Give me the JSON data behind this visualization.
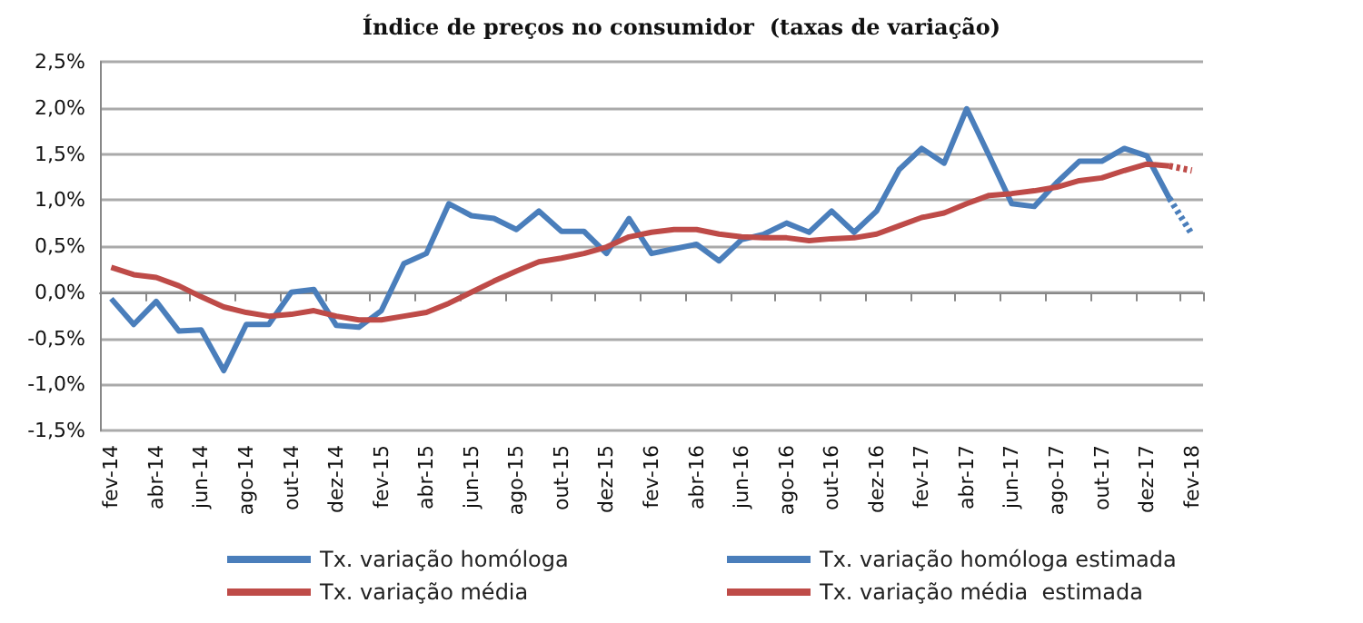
{
  "chart_data": {
    "type": "line",
    "title": "Índice de preços no consumidor  (taxas de variação)",
    "categories": [
      "fev-14",
      null,
      "abr-14",
      null,
      "jun-14",
      null,
      "ago-14",
      null,
      "out-14",
      null,
      "dez-14",
      null,
      "fev-15",
      null,
      "abr-15",
      null,
      "jun-15",
      null,
      "ago-15",
      null,
      "out-15",
      null,
      "dez-15",
      null,
      "fev-16",
      null,
      "abr-16",
      null,
      "jun-16",
      null,
      "ago-16",
      null,
      "out-16",
      null,
      "dez-16",
      null,
      "fev-17",
      null,
      "abr-17",
      null,
      "jun-17",
      null,
      "ago-17",
      null,
      "out-17",
      null,
      "dez-17",
      null,
      "fev-18"
    ],
    "series": [
      {
        "name": "Tx. variação homóloga",
        "color": "#4a7ebb",
        "line_style": "solid",
        "values": [
          -0.07,
          -0.35,
          -0.1,
          -0.42,
          -0.41,
          -0.85,
          -0.35,
          -0.35,
          0.0,
          0.03,
          -0.36,
          -0.38,
          -0.2,
          0.31,
          0.42,
          0.96,
          0.83,
          0.8,
          0.68,
          0.88,
          0.66,
          0.66,
          0.42,
          0.8,
          0.42,
          0.47,
          0.52,
          0.34,
          0.57,
          0.63,
          0.75,
          0.65,
          0.88,
          0.65,
          0.88,
          1.33,
          1.56,
          1.4,
          1.99,
          1.48,
          0.96,
          0.93,
          1.19,
          1.42,
          1.42,
          1.56,
          1.48,
          1.02,
          null
        ]
      },
      {
        "name": "Tx. variação homóloga estimada",
        "color": "#4a7ebb",
        "line_style": "dotted",
        "values": [
          null,
          null,
          null,
          null,
          null,
          null,
          null,
          null,
          null,
          null,
          null,
          null,
          null,
          null,
          null,
          null,
          null,
          null,
          null,
          null,
          null,
          null,
          null,
          null,
          null,
          null,
          null,
          null,
          null,
          null,
          null,
          null,
          null,
          null,
          null,
          null,
          null,
          null,
          null,
          null,
          null,
          null,
          null,
          null,
          null,
          null,
          null,
          1.02,
          0.63
        ]
      },
      {
        "name": "Tx. variação média",
        "color": "#be4b48",
        "line_style": "solid",
        "values": [
          0.27,
          0.19,
          0.16,
          0.07,
          -0.05,
          -0.16,
          -0.22,
          -0.26,
          -0.24,
          -0.2,
          -0.26,
          -0.3,
          -0.3,
          -0.26,
          -0.22,
          -0.12,
          0.0,
          0.12,
          0.23,
          0.33,
          0.37,
          0.42,
          0.49,
          0.6,
          0.65,
          0.68,
          0.68,
          0.63,
          0.6,
          0.59,
          0.59,
          0.56,
          0.58,
          0.59,
          0.63,
          0.72,
          0.81,
          0.86,
          0.96,
          1.05,
          1.07,
          1.1,
          1.14,
          1.21,
          1.24,
          1.32,
          1.39,
          1.37,
          null
        ]
      },
      {
        "name": "Tx. variação média  estimada",
        "color": "#be4b48",
        "line_style": "dotted",
        "values": [
          null,
          null,
          null,
          null,
          null,
          null,
          null,
          null,
          null,
          null,
          null,
          null,
          null,
          null,
          null,
          null,
          null,
          null,
          null,
          null,
          null,
          null,
          null,
          null,
          null,
          null,
          null,
          null,
          null,
          null,
          null,
          null,
          null,
          null,
          null,
          null,
          null,
          null,
          null,
          null,
          null,
          null,
          null,
          null,
          null,
          null,
          null,
          1.37,
          1.32
        ]
      }
    ],
    "ylim": [
      -1.5,
      2.5
    ],
    "yticks": [
      {
        "value": -1.5,
        "label": "-1,5%"
      },
      {
        "value": -1.0,
        "label": "-1,0%"
      },
      {
        "value": -0.5,
        "label": "-0,5%"
      },
      {
        "value": 0,
        "label": "0,0%"
      },
      {
        "value": 0.5,
        "label": "0,5%"
      },
      {
        "value": 1.0,
        "label": "1,0%"
      },
      {
        "value": 1.5,
        "label": "1,5%"
      },
      {
        "value": 2.0,
        "label": "2,0%"
      },
      {
        "value": 2.5,
        "label": "2,5%"
      }
    ],
    "grid": "y",
    "legend": "bottom",
    "marker": "none"
  }
}
